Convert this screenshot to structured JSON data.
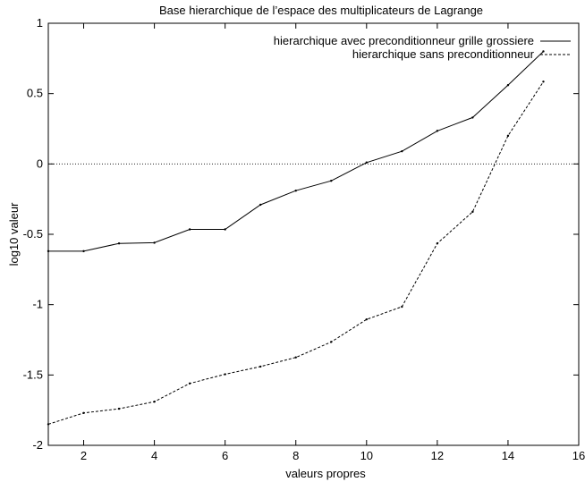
{
  "chart_data": {
    "type": "line",
    "title": "Base hierarchique de l’espace des multiplicateurs de Lagrange",
    "xlabel": "valeurs propres",
    "ylabel": "log10 valeur",
    "xlim": [
      1,
      16
    ],
    "ylim": [
      -2,
      1
    ],
    "xticks": [
      2,
      4,
      6,
      8,
      10,
      12,
      14,
      16
    ],
    "yticks": [
      1,
      0.5,
      0,
      -0.5,
      -1,
      -1.5,
      -2
    ],
    "ytick_labels": [
      "1",
      "0.5",
      "0",
      "-0.5",
      "-1",
      "-1.5",
      "-2"
    ],
    "reference_line": 0,
    "grid": false,
    "legend_position": "top-right",
    "series": [
      {
        "name": "hierarchique avec preconditionneur grille grossiere",
        "style": "solid",
        "x": [
          1,
          2,
          3,
          4,
          5,
          6,
          7,
          8,
          9,
          10,
          11,
          12,
          13,
          14,
          15
        ],
        "y": [
          -0.62,
          -0.62,
          -0.565,
          -0.56,
          -0.465,
          -0.465,
          -0.29,
          -0.19,
          -0.12,
          0.01,
          0.09,
          0.235,
          0.33,
          0.56,
          0.8
        ]
      },
      {
        "name": "hierarchique sans preconditionneur",
        "style": "dashed",
        "x": [
          1,
          2,
          3,
          4,
          5,
          6,
          7,
          8,
          9,
          10,
          11,
          12,
          13,
          14,
          15
        ],
        "y": [
          -1.85,
          -1.77,
          -1.74,
          -1.69,
          -1.56,
          -1.495,
          -1.44,
          -1.375,
          -1.265,
          -1.105,
          -1.015,
          -0.565,
          -0.34,
          0.2,
          0.585
        ]
      }
    ]
  }
}
